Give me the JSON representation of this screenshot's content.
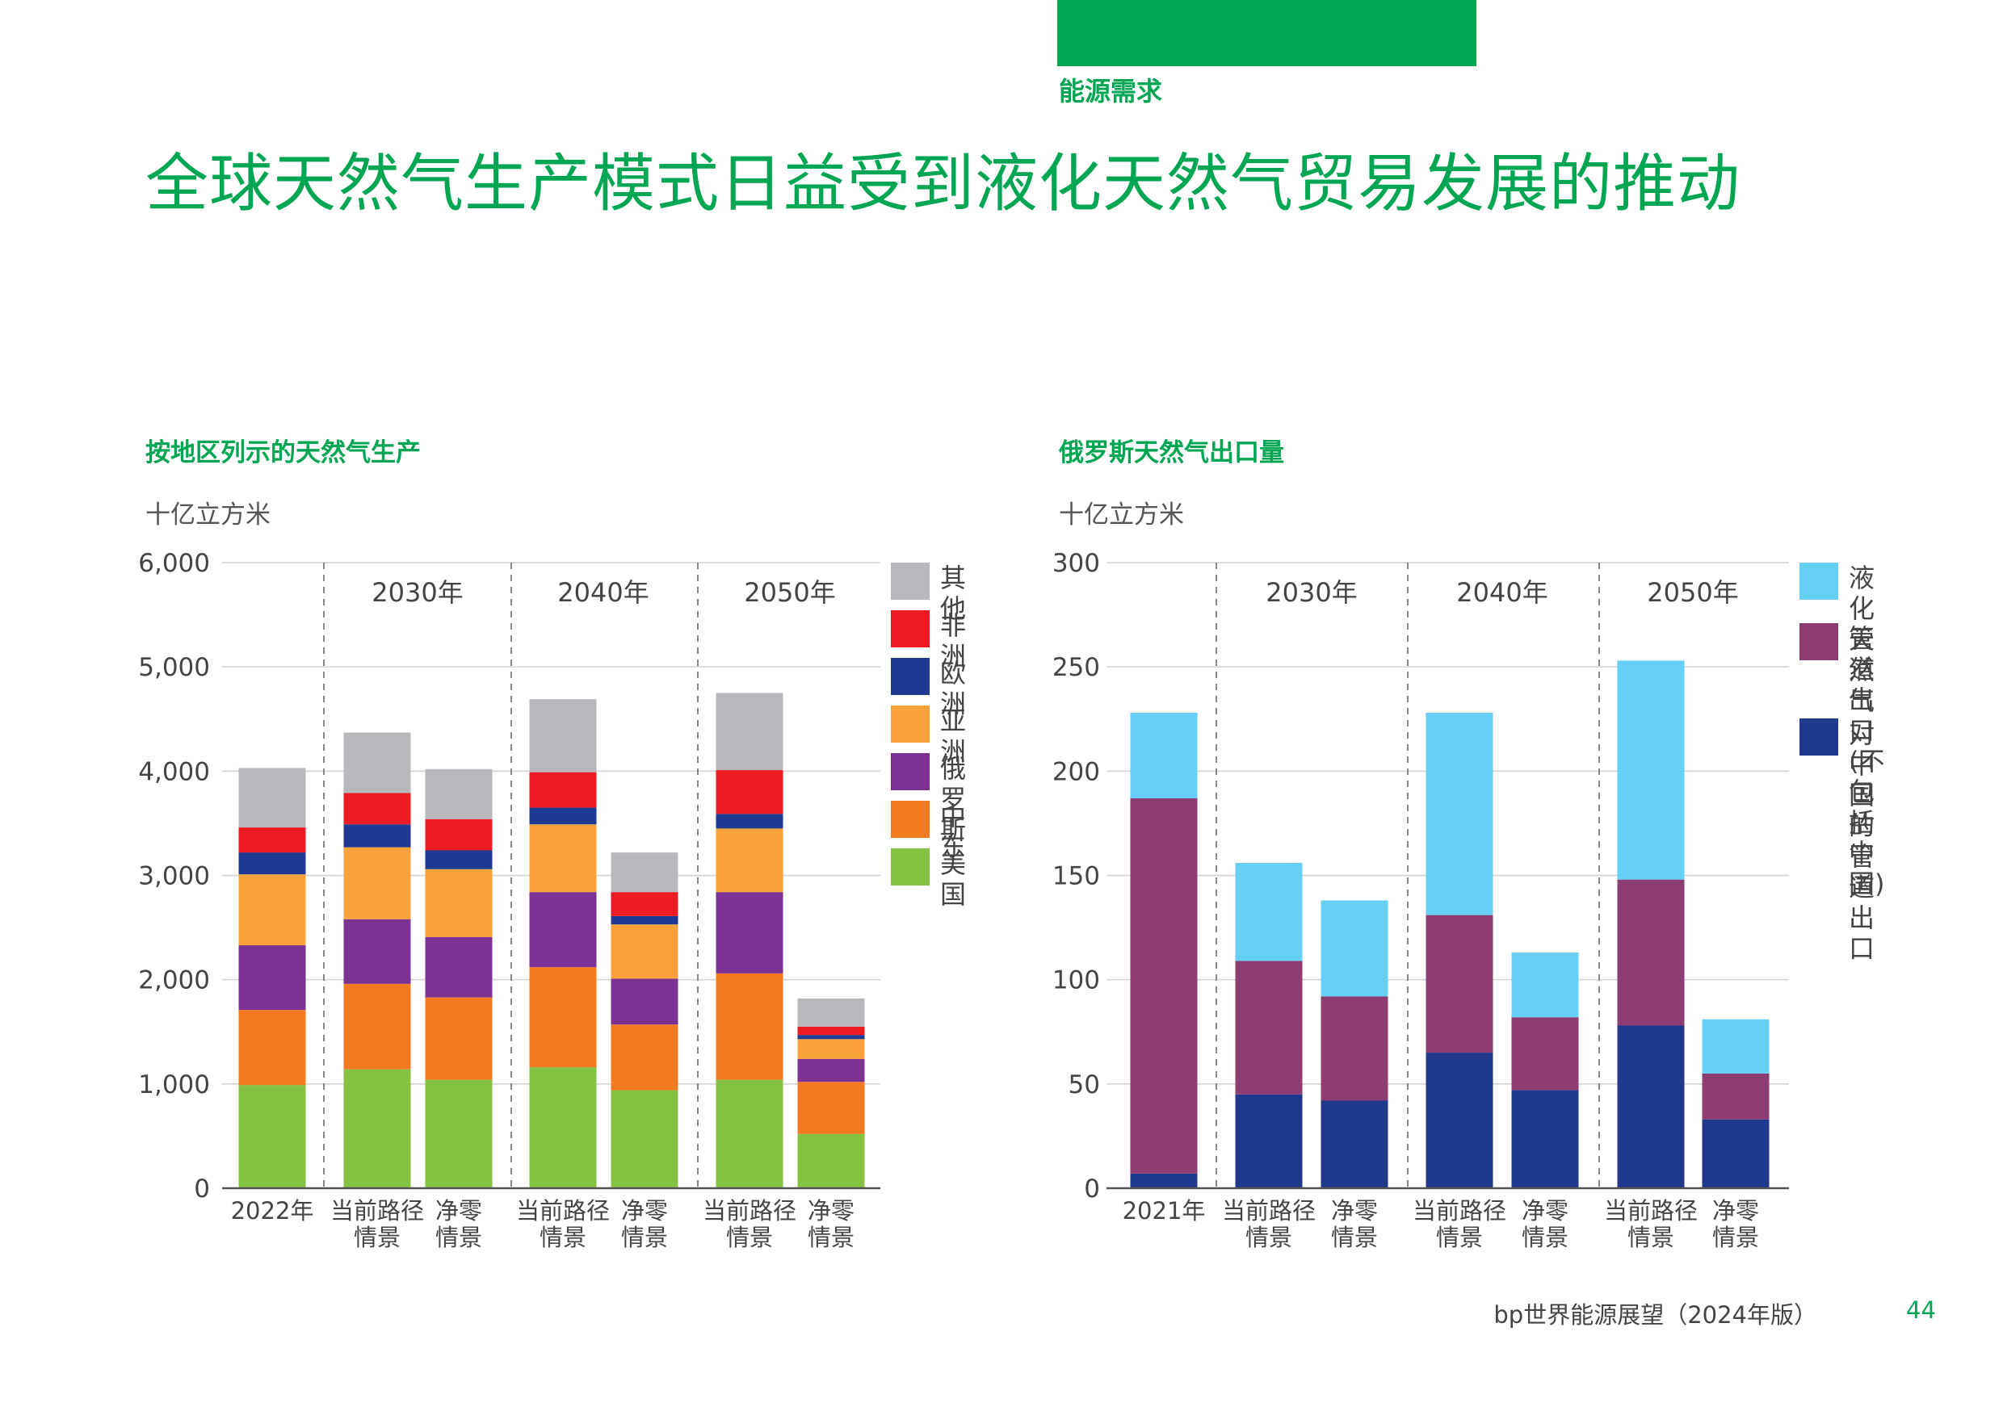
{
  "header": {
    "section": "能源需求",
    "title": "全球天然气生产模式日益受到液化天然气贸易发展的推动"
  },
  "footer": {
    "publication": "bp世界能源展望（2024年版）",
    "page_number": "44"
  },
  "colors": {
    "brand_green": "#00a651",
    "gridline": "#d0d0d0",
    "axis": "#555555"
  },
  "chart_data": [
    {
      "type": "bar",
      "stacked": true,
      "title": "按地区列示的天然气生产",
      "unit": "十亿立方米",
      "ylim": [
        0,
        6000
      ],
      "yticks": [
        0,
        1000,
        2000,
        3000,
        4000,
        5000,
        6000
      ],
      "ytick_labels": [
        "0",
        "1,000",
        "2,000",
        "3,000",
        "4,000",
        "5,000",
        "6,000"
      ],
      "grid": true,
      "legend_position": "right",
      "groups": [
        {
          "label": "",
          "categories": [
            "2022年"
          ]
        },
        {
          "label": "2030年",
          "categories": [
            "当前路径\n情景",
            "净零\n情景"
          ]
        },
        {
          "label": "2040年",
          "categories": [
            "当前路径\n情景",
            "净零\n情景"
          ]
        },
        {
          "label": "2050年",
          "categories": [
            "当前路径\n情景",
            "净零\n情景"
          ]
        }
      ],
      "series": [
        {
          "name": "美国",
          "color": "#84c241",
          "values": [
            990,
            1140,
            1040,
            1160,
            940,
            1040,
            520
          ]
        },
        {
          "name": "中东",
          "color": "#f47a22",
          "values": [
            720,
            820,
            790,
            960,
            630,
            1020,
            500
          ]
        },
        {
          "name": "俄罗斯",
          "color": "#7b3294",
          "values": [
            620,
            620,
            580,
            720,
            440,
            780,
            220
          ]
        },
        {
          "name": "亚洲",
          "color": "#f9a23b",
          "values": [
            680,
            690,
            650,
            650,
            520,
            610,
            190
          ]
        },
        {
          "name": "欧洲",
          "color": "#1f3a93",
          "values": [
            210,
            220,
            180,
            160,
            80,
            140,
            40
          ]
        },
        {
          "name": "非洲",
          "color": "#ed1c24",
          "values": [
            240,
            300,
            300,
            340,
            230,
            420,
            80
          ]
        },
        {
          "name": "其他",
          "color": "#b8b8bc",
          "values": [
            570,
            580,
            480,
            700,
            380,
            740,
            270
          ]
        }
      ]
    },
    {
      "type": "bar",
      "stacked": true,
      "title": "俄罗斯天然气出口量",
      "unit": "十亿立方米",
      "ylim": [
        0,
        300
      ],
      "yticks": [
        0,
        50,
        100,
        150,
        200,
        250,
        300
      ],
      "ytick_labels": [
        "0",
        "50",
        "100",
        "150",
        "200",
        "250",
        "300"
      ],
      "grid": true,
      "legend_position": "right",
      "groups": [
        {
          "label": "",
          "categories": [
            "2021年"
          ]
        },
        {
          "label": "2030年",
          "categories": [
            "当前路径\n情景",
            "净零\n情景"
          ]
        },
        {
          "label": "2040年",
          "categories": [
            "当前路径\n情景",
            "净零\n情景"
          ]
        },
        {
          "label": "2050年",
          "categories": [
            "当前路径\n情景",
            "净零\n情景"
          ]
        }
      ],
      "series": [
        {
          "name": "对中国的\n管道出口",
          "color": "#1f3a8c",
          "values": [
            7,
            45,
            42,
            65,
            47,
            78,
            33
          ]
        },
        {
          "name": "管道出口\n(不包括\n中国)",
          "color": "#8e3c74",
          "values": [
            180,
            64,
            50,
            66,
            35,
            70,
            22
          ]
        },
        {
          "name": "液化天然气",
          "color": "#66cff6",
          "values": [
            41,
            47,
            46,
            97,
            31,
            105,
            26
          ]
        }
      ]
    }
  ]
}
